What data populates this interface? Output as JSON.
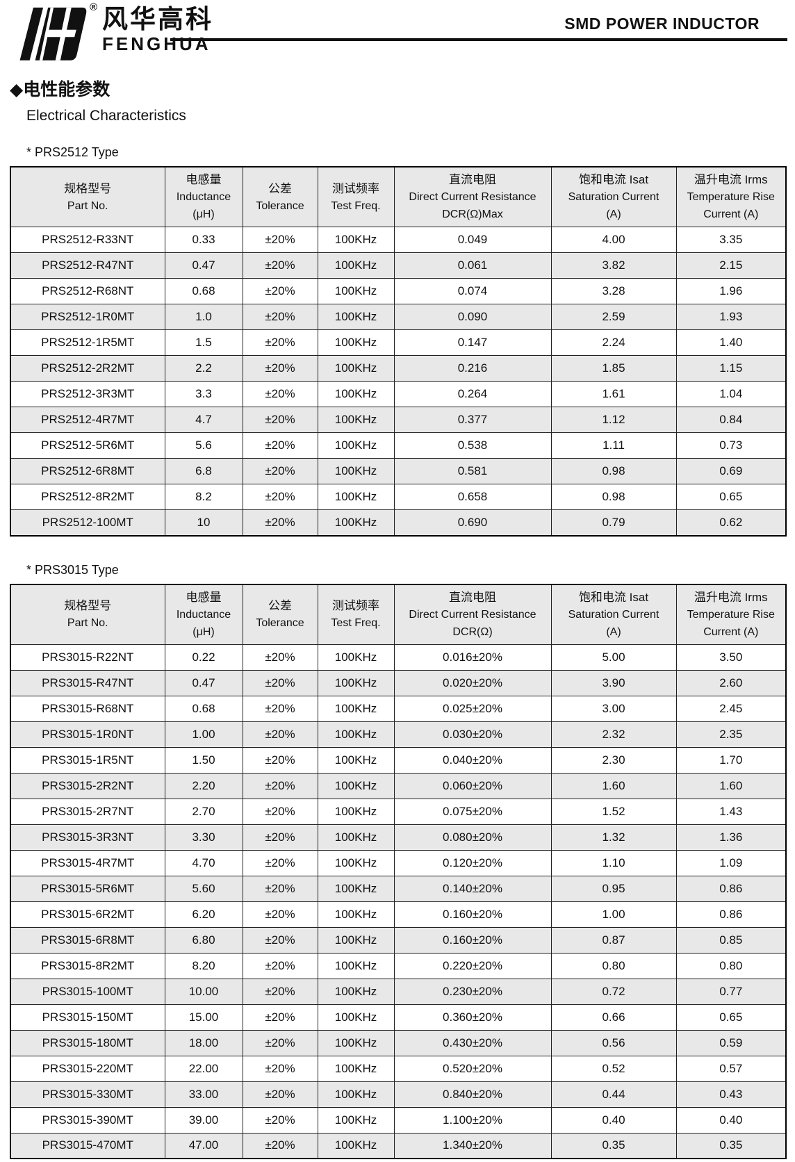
{
  "header": {
    "brand_cn": "风华高科",
    "brand_en": "FENGHUA",
    "registered_mark": "®",
    "doc_title": "SMD POWER INDUCTOR"
  },
  "section": {
    "title_cn": "◆电性能参数",
    "title_en": "Electrical Characteristics"
  },
  "colors": {
    "header_bg": "#e8e8e8",
    "alt_row_bg": "#e8e8e8",
    "border": "#1a1a1a",
    "text": "#111111"
  },
  "tables": [
    {
      "caption": "* PRS2512 Type",
      "columns": [
        {
          "lines": [
            "规格型号",
            "Part No."
          ]
        },
        {
          "lines": [
            "电感量",
            "Inductance",
            "(μH)"
          ]
        },
        {
          "lines": [
            "公差",
            "Tolerance"
          ]
        },
        {
          "lines": [
            "测试频率",
            "Test Freq."
          ]
        },
        {
          "lines": [
            "直流电阻",
            "Direct Current Resistance",
            "DCR(Ω)Max"
          ]
        },
        {
          "lines": [
            "饱和电流 Isat",
            "Saturation Current",
            "(A)"
          ]
        },
        {
          "lines": [
            "温升电流 Irms",
            "Temperature Rise",
            "Current (A)"
          ]
        }
      ],
      "rows": [
        [
          "PRS2512-R33NT",
          "0.33",
          "±20%",
          "100KHz",
          "0.049",
          "4.00",
          "3.35"
        ],
        [
          "PRS2512-R47NT",
          "0.47",
          "±20%",
          "100KHz",
          "0.061",
          "3.82",
          "2.15"
        ],
        [
          "PRS2512-R68NT",
          "0.68",
          "±20%",
          "100KHz",
          "0.074",
          "3.28",
          "1.96"
        ],
        [
          "PRS2512-1R0MT",
          "1.0",
          "±20%",
          "100KHz",
          "0.090",
          "2.59",
          "1.93"
        ],
        [
          "PRS2512-1R5MT",
          "1.5",
          "±20%",
          "100KHz",
          "0.147",
          "2.24",
          "1.40"
        ],
        [
          "PRS2512-2R2MT",
          "2.2",
          "±20%",
          "100KHz",
          "0.216",
          "1.85",
          "1.15"
        ],
        [
          "PRS2512-3R3MT",
          "3.3",
          "±20%",
          "100KHz",
          "0.264",
          "1.61",
          "1.04"
        ],
        [
          "PRS2512-4R7MT",
          "4.7",
          "±20%",
          "100KHz",
          "0.377",
          "1.12",
          "0.84"
        ],
        [
          "PRS2512-5R6MT",
          "5.6",
          "±20%",
          "100KHz",
          "0.538",
          "1.11",
          "0.73"
        ],
        [
          "PRS2512-6R8MT",
          "6.8",
          "±20%",
          "100KHz",
          "0.581",
          "0.98",
          "0.69"
        ],
        [
          "PRS2512-8R2MT",
          "8.2",
          "±20%",
          "100KHz",
          "0.658",
          "0.98",
          "0.65"
        ],
        [
          "PRS2512-100MT",
          "10",
          "±20%",
          "100KHz",
          "0.690",
          "0.79",
          "0.62"
        ]
      ]
    },
    {
      "caption": "* PRS3015 Type",
      "columns": [
        {
          "lines": [
            "规格型号",
            "Part No."
          ]
        },
        {
          "lines": [
            "电感量",
            "Inductance",
            "(μH)"
          ]
        },
        {
          "lines": [
            "公差",
            "Tolerance"
          ]
        },
        {
          "lines": [
            "测试频率",
            "Test Freq."
          ]
        },
        {
          "lines": [
            "直流电阻",
            "Direct Current Resistance",
            "DCR(Ω)"
          ]
        },
        {
          "lines": [
            "饱和电流 Isat",
            "Saturation Current",
            "(A)"
          ]
        },
        {
          "lines": [
            "温升电流 Irms",
            "Temperature Rise",
            "Current (A)"
          ]
        }
      ],
      "rows": [
        [
          "PRS3015-R22NT",
          "0.22",
          "±20%",
          "100KHz",
          "0.016±20%",
          "5.00",
          "3.50"
        ],
        [
          "PRS3015-R47NT",
          "0.47",
          "±20%",
          "100KHz",
          "0.020±20%",
          "3.90",
          "2.60"
        ],
        [
          "PRS3015-R68NT",
          "0.68",
          "±20%",
          "100KHz",
          "0.025±20%",
          "3.00",
          "2.45"
        ],
        [
          "PRS3015-1R0NT",
          "1.00",
          "±20%",
          "100KHz",
          "0.030±20%",
          "2.32",
          "2.35"
        ],
        [
          "PRS3015-1R5NT",
          "1.50",
          "±20%",
          "100KHz",
          "0.040±20%",
          "2.30",
          "1.70"
        ],
        [
          "PRS3015-2R2NT",
          "2.20",
          "±20%",
          "100KHz",
          "0.060±20%",
          "1.60",
          "1.60"
        ],
        [
          "PRS3015-2R7NT",
          "2.70",
          "±20%",
          "100KHz",
          "0.075±20%",
          "1.52",
          "1.43"
        ],
        [
          "PRS3015-3R3NT",
          "3.30",
          "±20%",
          "100KHz",
          "0.080±20%",
          "1.32",
          "1.36"
        ],
        [
          "PRS3015-4R7MT",
          "4.70",
          "±20%",
          "100KHz",
          "0.120±20%",
          "1.10",
          "1.09"
        ],
        [
          "PRS3015-5R6MT",
          "5.60",
          "±20%",
          "100KHz",
          "0.140±20%",
          "0.95",
          "0.86"
        ],
        [
          "PRS3015-6R2MT",
          "6.20",
          "±20%",
          "100KHz",
          "0.160±20%",
          "1.00",
          "0.86"
        ],
        [
          "PRS3015-6R8MT",
          "6.80",
          "±20%",
          "100KHz",
          "0.160±20%",
          "0.87",
          "0.85"
        ],
        [
          "PRS3015-8R2MT",
          "8.20",
          "±20%",
          "100KHz",
          "0.220±20%",
          "0.80",
          "0.80"
        ],
        [
          "PRS3015-100MT",
          "10.00",
          "±20%",
          "100KHz",
          "0.230±20%",
          "0.72",
          "0.77"
        ],
        [
          "PRS3015-150MT",
          "15.00",
          "±20%",
          "100KHz",
          "0.360±20%",
          "0.66",
          "0.65"
        ],
        [
          "PRS3015-180MT",
          "18.00",
          "±20%",
          "100KHz",
          "0.430±20%",
          "0.56",
          "0.59"
        ],
        [
          "PRS3015-220MT",
          "22.00",
          "±20%",
          "100KHz",
          "0.520±20%",
          "0.52",
          "0.57"
        ],
        [
          "PRS3015-330MT",
          "33.00",
          "±20%",
          "100KHz",
          "0.840±20%",
          "0.44",
          "0.43"
        ],
        [
          "PRS3015-390MT",
          "39.00",
          "±20%",
          "100KHz",
          "1.100±20%",
          "0.40",
          "0.40"
        ],
        [
          "PRS3015-470MT",
          "47.00",
          "±20%",
          "100KHz",
          "1.340±20%",
          "0.35",
          "0.35"
        ]
      ]
    }
  ]
}
